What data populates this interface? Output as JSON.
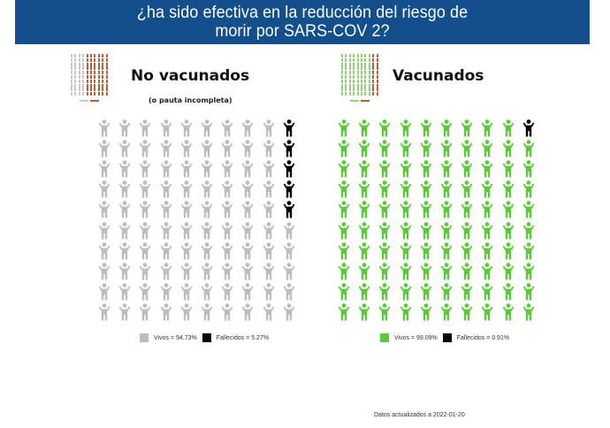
{
  "header": {
    "title_line1": "¿ha sido efectiva en la reducción del riesgo de",
    "title_line2": "morir por SARS-COV 2?",
    "background": "#134f8c"
  },
  "panels": [
    {
      "title": "No vacunados",
      "subtitle": "(o pauta incompleta)",
      "alive_color": "#bdbdbd",
      "dead_color": "#000000",
      "legend": {
        "alive": "Vivos = 94.73%",
        "dead": "Fallecidos = 5.27%"
      },
      "thumbnail": {
        "alive_cols": 4,
        "dead_cols": 6,
        "alive_color": "#c8c8c8",
        "dead_color": "#b5603a"
      }
    },
    {
      "title": "Vacunados",
      "subtitle": "",
      "alive_color": "#5cc93a",
      "dead_color": "#000000",
      "legend": {
        "alive": "Vivos = 99.09%",
        "dead": "Fallecidos = 0.91%"
      },
      "thumbnail": {
        "alive_cols": 8,
        "dead_cols": 2,
        "alive_color": "#8fd27a",
        "dead_color": "#b5603a"
      }
    }
  ],
  "footer": {
    "text": "Datos actualizados a 2022-01-20"
  },
  "chart_data": [
    {
      "type": "waffle",
      "title": "No vacunados (o pauta incompleta)",
      "grid": [
        10,
        10
      ],
      "categories": [
        "Vivos",
        "Fallecidos"
      ],
      "values": [
        94.73,
        5.27
      ],
      "icons_shown": [
        95,
        5
      ],
      "colors": [
        "#bdbdbd",
        "#000000"
      ],
      "legend_position": "bottom"
    },
    {
      "type": "waffle",
      "title": "Vacunados",
      "grid": [
        10,
        10
      ],
      "categories": [
        "Vivos",
        "Fallecidos"
      ],
      "values": [
        99.09,
        0.91
      ],
      "icons_shown": [
        99,
        1
      ],
      "colors": [
        "#5cc93a",
        "#000000"
      ],
      "legend_position": "bottom"
    }
  ]
}
